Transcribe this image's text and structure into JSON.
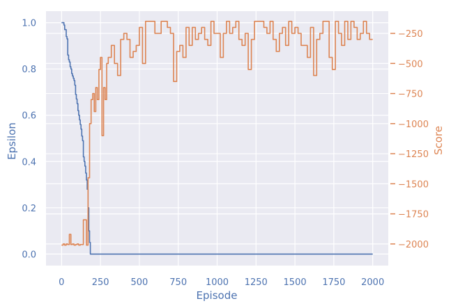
{
  "chart_data": {
    "type": "line",
    "xlabel": "Episode",
    "ylabel_left": "Epsilon",
    "ylabel_right": "Score",
    "grid": true,
    "xlim": [
      -100,
      2100
    ],
    "ylim_left": [
      -0.05,
      1.05
    ],
    "ylim_right": [
      -2180,
      -65
    ],
    "x_ticks": [
      0,
      250,
      500,
      750,
      1000,
      1250,
      1500,
      1750,
      2000
    ],
    "x_tick_labels": [
      "0",
      "250",
      "500",
      "750",
      "1000",
      "1250",
      "1500",
      "1750",
      "2000"
    ],
    "y_left_ticks": [
      0.0,
      0.2,
      0.4,
      0.6,
      0.8,
      1.0
    ],
    "y_left_tick_labels": [
      "0.0",
      "0.2",
      "0.4",
      "0.6",
      "0.8",
      "1.0"
    ],
    "y_right_ticks": [
      -2000,
      -1750,
      -1500,
      -1250,
      -1000,
      -750,
      -500,
      -250
    ],
    "y_right_tick_labels": [
      "−2000",
      "−1750",
      "−1500",
      "−1250",
      "−1000",
      "−750",
      "−500",
      "−250"
    ],
    "series": [
      {
        "axis": "left",
        "color": "#4c72b0",
        "x": [
          0,
          10,
          15,
          20,
          30,
          35,
          40,
          45,
          50,
          55,
          60,
          65,
          70,
          75,
          80,
          85,
          90,
          95,
          100,
          105,
          110,
          115,
          120,
          125,
          130,
          135,
          140,
          145,
          150,
          155,
          160,
          165,
          170,
          175,
          180,
          185,
          190,
          195,
          200,
          205,
          210,
          2000
        ],
        "y": [
          1.0,
          1.0,
          0.99,
          0.97,
          0.94,
          0.93,
          0.86,
          0.84,
          0.83,
          0.81,
          0.8,
          0.78,
          0.77,
          0.76,
          0.75,
          0.73,
          0.69,
          0.67,
          0.65,
          0.62,
          0.6,
          0.58,
          0.56,
          0.54,
          0.51,
          0.49,
          0.42,
          0.4,
          0.38,
          0.35,
          0.32,
          0.28,
          0.2,
          0.1,
          0.05,
          0.0,
          0.0,
          0.0,
          0.0,
          0.0,
          0.0,
          0.0
        ]
      },
      {
        "axis": "right",
        "color": "#dd8452",
        "x": [
          0,
          10,
          20,
          30,
          40,
          50,
          60,
          70,
          80,
          90,
          100,
          110,
          120,
          130,
          140,
          150,
          160,
          170,
          180,
          190,
          200,
          210,
          220,
          230,
          240,
          250,
          260,
          270,
          280,
          290,
          300,
          320,
          340,
          360,
          380,
          400,
          420,
          440,
          460,
          480,
          500,
          520,
          540,
          560,
          580,
          600,
          620,
          640,
          660,
          680,
          700,
          720,
          740,
          760,
          780,
          800,
          820,
          840,
          860,
          880,
          900,
          920,
          940,
          960,
          980,
          1000,
          1020,
          1040,
          1060,
          1080,
          1100,
          1120,
          1140,
          1160,
          1180,
          1200,
          1220,
          1240,
          1260,
          1280,
          1300,
          1320,
          1340,
          1360,
          1380,
          1400,
          1420,
          1440,
          1460,
          1480,
          1500,
          1520,
          1540,
          1560,
          1580,
          1600,
          1620,
          1640,
          1660,
          1680,
          1700,
          1720,
          1740,
          1760,
          1780,
          1800,
          1820,
          1840,
          1860,
          1880,
          1900,
          1920,
          1940,
          1960,
          1980,
          2000
        ],
        "y": [
          -2010,
          -2000,
          -2010,
          -2000,
          -2005,
          -1920,
          -2005,
          -2000,
          -2010,
          -2005,
          -2000,
          -2010,
          -2005,
          -2005,
          -1800,
          -1800,
          -2010,
          -1450,
          -1000,
          -800,
          -750,
          -900,
          -700,
          -800,
          -550,
          -450,
          -1100,
          -700,
          -800,
          -500,
          -450,
          -350,
          -500,
          -600,
          -300,
          -250,
          -300,
          -450,
          -400,
          -350,
          -200,
          -500,
          -150,
          -150,
          -150,
          -250,
          -250,
          -150,
          -150,
          -200,
          -250,
          -650,
          -400,
          -350,
          -450,
          -200,
          -350,
          -200,
          -300,
          -250,
          -200,
          -300,
          -350,
          -150,
          -250,
          -250,
          -450,
          -250,
          -150,
          -250,
          -200,
          -150,
          -300,
          -350,
          -250,
          -550,
          -300,
          -150,
          -150,
          -150,
          -200,
          -250,
          -150,
          -300,
          -400,
          -250,
          -200,
          -350,
          -150,
          -250,
          -200,
          -250,
          -350,
          -350,
          -450,
          -200,
          -600,
          -300,
          -250,
          -150,
          -150,
          -450,
          -550,
          -150,
          -250,
          -350,
          -150,
          -300,
          -150,
          -200,
          -300,
          -250,
          -150,
          -250,
          -300,
          -300
        ]
      }
    ]
  }
}
